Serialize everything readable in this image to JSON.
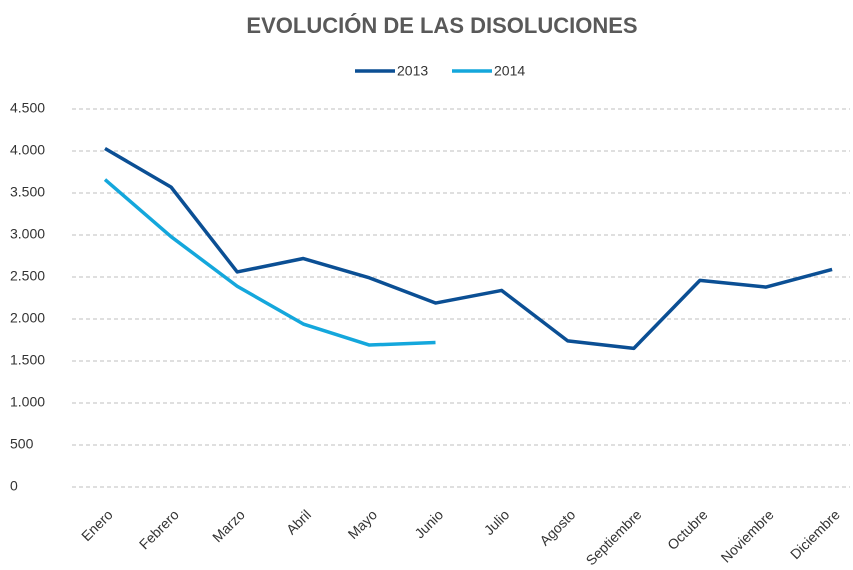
{
  "chart_data": {
    "type": "line",
    "title": "EVOLUCIÓN DE LAS DISOLUCIONES",
    "categories": [
      "Enero",
      "Febrero",
      "Marzo",
      "Abril",
      "Mayo",
      "Junio",
      "Julio",
      "Agosto",
      "Septiembre",
      "Octubre",
      "Noviembre",
      "Diciembre"
    ],
    "series": [
      {
        "name": "2013",
        "color": "#0b4f94",
        "values": [
          4030,
          3570,
          2560,
          2720,
          2490,
          2190,
          2340,
          1740,
          1650,
          2460,
          2380,
          2590
        ]
      },
      {
        "name": "2014",
        "color": "#14a7dc",
        "values": [
          3660,
          2980,
          2390,
          1940,
          1690,
          1720,
          null,
          null,
          null,
          null,
          null,
          null
        ]
      }
    ],
    "ylim": [
      0,
      4500
    ],
    "yticks": [
      0,
      500,
      {
        "value": 1000,
        "label": "1.000"
      },
      {
        "value": 1500,
        "label": "1.500"
      },
      {
        "value": 2000,
        "label": "2.000"
      },
      {
        "value": 2500,
        "label": "2.500"
      },
      {
        "value": 3000,
        "label": "3.000"
      },
      {
        "value": 3500,
        "label": "3.500"
      },
      {
        "value": 4000,
        "label": "4.000"
      },
      {
        "value": 4500,
        "label": "4.500"
      }
    ],
    "grid": true,
    "legend": "top"
  }
}
